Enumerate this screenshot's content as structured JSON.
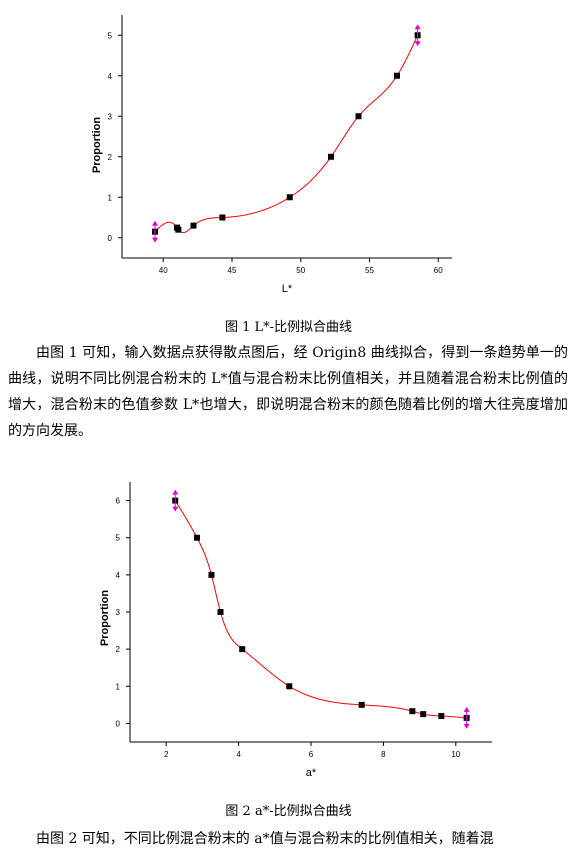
{
  "figure1": {
    "caption": "图 1  L*-比例拟合曲线",
    "paragraph": "由图 1 可知，输入数据点获得散点图后，经 Origin8 曲线拟合，得到一条趋势单一的曲线，说明不同比例混合粉末的 L*值与混合粉末比例值相关，并且随着混合粉末比例值的增大，混合粉末的色值参数 L*也增大，即说明混合粉末的颜色随着比例的增大往亮度增加的方向发展。"
  },
  "figure2": {
    "caption": "图 2  a*-比例拟合曲线",
    "paragraph": "由图 2 可知，不同比例混合粉末的 a*值与混合粉末的比例值相关，随着混"
  },
  "colors": {
    "points": "#000000",
    "curve": "#ff0000",
    "marker": "#e000e0",
    "axis": "#000000"
  },
  "chart_data": [
    {
      "type": "scatter",
      "xlabel": "L*",
      "ylabel": "Proportion",
      "xlim": [
        37,
        61
      ],
      "ylim": [
        -0.5,
        5.5
      ],
      "xticks": [
        40,
        45,
        50,
        55,
        60
      ],
      "yticks": [
        0,
        1,
        2,
        3,
        4,
        5
      ],
      "x": [
        39.4,
        41.0,
        41.1,
        42.2,
        44.3,
        49.2,
        52.2,
        54.2,
        57.0,
        58.5
      ],
      "y": [
        0.15,
        0.25,
        0.2,
        0.3,
        0.5,
        1.0,
        2.0,
        3.0,
        4.0,
        5.0
      ],
      "marked_points": [
        0,
        9
      ],
      "fit_curve": true
    },
    {
      "type": "scatter",
      "xlabel": "a*",
      "ylabel": "Proportion",
      "xlim": [
        1,
        11
      ],
      "ylim": [
        -0.5,
        6.5
      ],
      "xticks": [
        2,
        4,
        6,
        8,
        10
      ],
      "yticks": [
        0,
        1,
        2,
        3,
        4,
        5,
        6
      ],
      "x": [
        2.25,
        2.85,
        3.25,
        3.5,
        4.1,
        5.4,
        7.4,
        8.8,
        9.1,
        9.6,
        10.3
      ],
      "y": [
        6.0,
        5.0,
        4.0,
        3.0,
        2.0,
        1.0,
        0.5,
        0.33,
        0.25,
        0.2,
        0.15
      ],
      "marked_points": [
        0,
        10
      ],
      "fit_curve": true
    }
  ]
}
